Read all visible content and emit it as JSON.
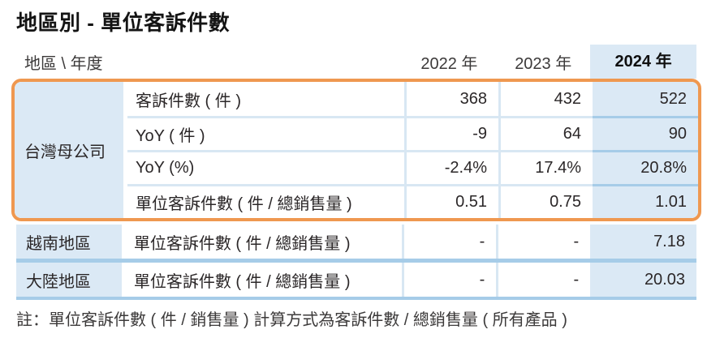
{
  "title": "地區別 - 單位客訴件數",
  "colors": {
    "accent_orange": "#ef9850",
    "cell_blue": "#dbe9f5",
    "separator_blue": "#a6cce8",
    "gridline_blue": "#d8e7f3"
  },
  "table": {
    "corner_label": "地區 \\ 年度",
    "year_headers": {
      "y2022": "2022 年",
      "y2023": "2023 年",
      "y2024": "2024 年"
    },
    "highlighted_year": "2024 年",
    "group": {
      "region": "台灣母公司",
      "rows": [
        {
          "metric": "客訴件數 ( 件 )",
          "y2022": "368",
          "y2023": "432",
          "y2024": "522"
        },
        {
          "metric": "YoY ( 件 )",
          "y2022": "-9",
          "y2023": "64",
          "y2024": "90"
        },
        {
          "metric": "YoY (%)",
          "y2022": "-2.4%",
          "y2023": "17.4%",
          "y2024": "20.8%"
        },
        {
          "metric": "單位客訴件數 ( 件 / 總銷售量 )",
          "y2022": "0.51",
          "y2023": "0.75",
          "y2024": "1.01"
        }
      ]
    },
    "simple_rows": [
      {
        "region": "越南地區",
        "metric": "單位客訴件數 ( 件 / 總銷售量 )",
        "y2022": "-",
        "y2023": "-",
        "y2024": "7.18"
      },
      {
        "region": "大陸地區",
        "metric": "單位客訴件數 ( 件 / 總銷售量 )",
        "y2022": "-",
        "y2023": "-",
        "y2024": "20.03"
      }
    ]
  },
  "note": "註：單位客訴件數 ( 件 / 銷售量 ) 計算方式為客訴件數 / 總銷售量 ( 所有產品 )"
}
